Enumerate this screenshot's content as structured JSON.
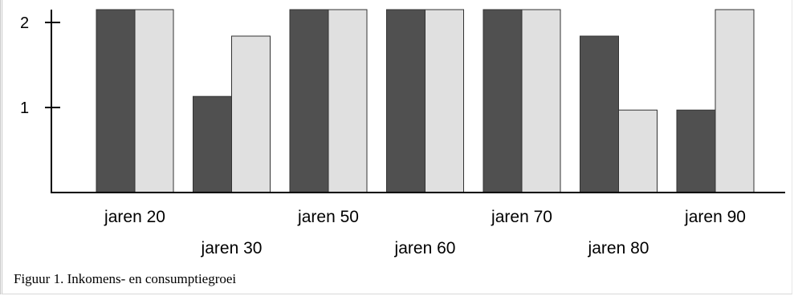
{
  "caption": "Figuur 1. Inkomens- en consumptiegroei",
  "colors": {
    "series_dark": "#505050",
    "series_light": "#e0e0e0",
    "bar_outline": "#333333",
    "axis": "#000000"
  },
  "chart_data": {
    "type": "bar",
    "title": "",
    "xlabel": "",
    "ylabel": "",
    "categories": [
      "jaren 20",
      "jaren 30",
      "jaren 50",
      "jaren 60",
      "jaren 70",
      "jaren 80",
      "jaren 90"
    ],
    "series": [
      {
        "values": [
          2.2,
          1.13,
          2.2,
          2.2,
          2.2,
          1.84,
          0.97
        ]
      },
      {
        "values": [
          2.2,
          1.84,
          2.2,
          2.2,
          2.2,
          0.97,
          2.2
        ]
      }
    ],
    "yticks": [
      1,
      2
    ],
    "ylim": [
      0,
      2.2
    ],
    "grid": false,
    "legend": "none"
  }
}
